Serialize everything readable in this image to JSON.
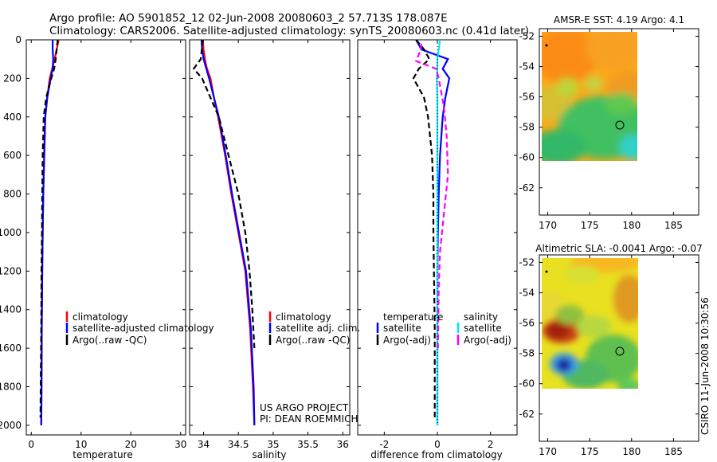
{
  "figure": {
    "title_line1": "Argo profile: AO 5901852_12 02-Jun-2008 20080603_2 57.713S 178.087E",
    "title_line2": "Climatology: CARS2006. Satellite-adjusted climatology: synTS_20080603.nc (0.41d later)",
    "credit": "CSIRO 11-Jun-2008 10:30:56",
    "project_line1": "US ARGO PROJECT",
    "project_line2": "PI: DEAN ROEMMICH"
  },
  "colors": {
    "climatology": "#ff0000",
    "satellite": "#0000ff",
    "argo": "#000000",
    "salinity_satellite": "#00e5ff",
    "salinity_argo": "#ff00ff"
  },
  "chart_data": [
    {
      "id": "temperature",
      "type": "line",
      "xlabel": "temperature",
      "ylabel": "",
      "xlim": [
        -1,
        31
      ],
      "ylim": [
        2050,
        0
      ],
      "xticks": [
        0,
        10,
        20,
        30
      ],
      "yticks": [
        0,
        200,
        400,
        600,
        800,
        1000,
        1200,
        1400,
        1600,
        1800,
        2000
      ],
      "legend": [
        "climatology",
        "satellite-adjusted climatology",
        "Argo(..raw -QC)"
      ],
      "series": [
        {
          "name": "climatology",
          "style": "solid",
          "color_key": "climatology",
          "x": [
            5.5,
            5.1,
            4.7,
            4.2,
            3.7,
            3.2,
            2.8,
            2.6,
            2.4,
            2.3,
            2.2,
            2.1,
            2.05,
            2.0
          ],
          "y": [
            0,
            50,
            100,
            150,
            200,
            300,
            400,
            600,
            800,
            1000,
            1200,
            1500,
            1800,
            2000
          ]
        },
        {
          "name": "satellite-adjusted climatology",
          "style": "solid",
          "color_key": "satellite",
          "x": [
            4.3,
            4.3,
            4.4,
            4.3,
            3.9,
            3.2,
            2.8,
            2.6,
            2.4,
            2.3,
            2.2,
            2.1,
            2.05,
            2.0
          ],
          "y": [
            0,
            50,
            100,
            150,
            200,
            300,
            400,
            600,
            800,
            1000,
            1200,
            1500,
            1800,
            2000
          ]
        },
        {
          "name": "Argo(..raw -QC)",
          "style": "dashed",
          "color_key": "argo",
          "x": [
            5.3,
            5.1,
            4.9,
            4.6,
            4.0,
            3.0,
            2.5,
            2.3,
            2.2,
            2.15,
            2.05,
            2.0,
            1.9,
            1.85
          ],
          "y": [
            0,
            50,
            100,
            150,
            200,
            300,
            400,
            600,
            800,
            1000,
            1200,
            1500,
            1800,
            1960
          ]
        }
      ]
    },
    {
      "id": "salinity",
      "type": "line",
      "xlabel": "salinity",
      "ylabel": "",
      "xlim": [
        33.8,
        36.1
      ],
      "ylim": [
        2050,
        0
      ],
      "xticks": [
        34,
        34.5,
        35,
        35.5,
        36
      ],
      "yticks": [
        0,
        200,
        400,
        600,
        800,
        1000,
        1200,
        1400,
        1600,
        1800,
        2000
      ],
      "legend": [
        "climatology",
        "satellite adj. clim.",
        "Argo(..raw -QC)"
      ],
      "series": [
        {
          "name": "climatology",
          "style": "solid",
          "color_key": "climatology",
          "x": [
            33.99,
            34.0,
            34.02,
            34.05,
            34.1,
            34.15,
            34.21,
            34.31,
            34.4,
            34.5,
            34.6,
            34.67,
            34.71,
            34.73
          ],
          "y": [
            0,
            50,
            100,
            150,
            200,
            300,
            400,
            600,
            800,
            1000,
            1200,
            1500,
            1800,
            2000
          ]
        },
        {
          "name": "satellite adj. clim.",
          "style": "solid",
          "color_key": "satellite",
          "x": [
            33.97,
            33.98,
            34.0,
            34.04,
            34.08,
            34.15,
            34.22,
            34.32,
            34.41,
            34.51,
            34.61,
            34.68,
            34.72,
            34.73
          ],
          "y": [
            0,
            50,
            100,
            150,
            200,
            300,
            400,
            600,
            800,
            1000,
            1200,
            1500,
            1800,
            2000
          ]
        },
        {
          "name": "Argo(..raw -QC)",
          "style": "dashed",
          "color_key": "argo",
          "x": [
            33.99,
            33.96,
            33.86,
            33.98,
            34.1,
            34.22,
            34.36,
            34.5,
            34.6,
            34.66,
            34.7,
            34.73
          ],
          "y": [
            0,
            100,
            150,
            200,
            300,
            400,
            600,
            800,
            1000,
            1200,
            1400,
            1600
          ]
        }
      ]
    },
    {
      "id": "difference",
      "type": "line",
      "xlabel": "difference from climatology",
      "ylabel": "",
      "xlim": [
        -3,
        3
      ],
      "ylim": [
        2050,
        0
      ],
      "xticks": [
        -2,
        0,
        2
      ],
      "yticks": [
        0,
        200,
        400,
        600,
        800,
        1000,
        1200,
        1400,
        1600,
        1800,
        2000
      ],
      "legend_titles": [
        "temperature",
        "salinity"
      ],
      "legend": [
        "satellite",
        "Argo(-adj)",
        "satellite",
        "Argo(-adj)"
      ],
      "series": [
        {
          "name": "temperature satellite",
          "style": "solid",
          "color_key": "satellite",
          "x": [
            -0.8,
            -0.6,
            0.4,
            0.2,
            0.45,
            0.3,
            0.2,
            0.1,
            0.05,
            0.02,
            0.0,
            0.0,
            0.0,
            0.0
          ],
          "y": [
            0,
            50,
            100,
            150,
            200,
            300,
            400,
            600,
            800,
            1000,
            1200,
            1500,
            1800,
            2000
          ]
        },
        {
          "name": "temperature Argo(-adj)",
          "style": "dashed",
          "color_key": "argo",
          "x": [
            -0.8,
            -0.5,
            -0.3,
            -0.7,
            -0.9,
            -0.5,
            -0.35,
            -0.2,
            -0.15,
            -0.15,
            -0.13,
            -0.1,
            -0.1,
            -0.1
          ],
          "y": [
            0,
            50,
            100,
            150,
            200,
            300,
            400,
            600,
            800,
            1000,
            1200,
            1500,
            1800,
            1960
          ]
        },
        {
          "name": "salinity satellite",
          "style": "solid",
          "color_key": "salinity_satellite",
          "x": [
            0.1,
            0.05,
            0.0,
            0.0,
            -0.02,
            0.0,
            0.0,
            0.0,
            0.0,
            0.0,
            0.0,
            0.0,
            0.0,
            0.0
          ],
          "y": [
            0,
            50,
            100,
            150,
            200,
            300,
            400,
            600,
            800,
            1000,
            1200,
            1500,
            1800,
            2000
          ]
        },
        {
          "name": "salinity Argo(-adj)",
          "style": "dashed",
          "color_key": "salinity_argo",
          "x": [
            -0.6,
            -0.65,
            -0.8,
            -0.05,
            0.05,
            0.25,
            0.35,
            0.4,
            0.25,
            0.1,
            0.05,
            0.02
          ],
          "y": [
            20,
            60,
            110,
            150,
            200,
            350,
            500,
            700,
            900,
            1100,
            1300,
            1600
          ]
        },
        {
          "name": "reference",
          "style": "dotted",
          "color_key": "argo",
          "x": [
            0,
            0
          ],
          "y": [
            0,
            2000
          ]
        }
      ]
    },
    {
      "id": "sst_map",
      "type": "heatmap",
      "title": "AMSR-E SST: 4.19 Argo: 4.1",
      "xlim": [
        169,
        188
      ],
      "ylim": [
        -63.8,
        -51.5
      ],
      "xticks": [
        170,
        175,
        180,
        185
      ],
      "yticks": [
        -52,
        -54,
        -56,
        -58,
        -60,
        -62
      ],
      "lon_range": [
        169.1,
        180
      ],
      "lat_range": [
        -60,
        -51.7
      ],
      "float_position": {
        "lon": 178.087,
        "lat": -57.713
      }
    },
    {
      "id": "sla_map",
      "type": "heatmap",
      "title": "Altimetric SLA: -0.0041 Argo: -0.07",
      "xlim": [
        169,
        188
      ],
      "ylim": [
        -63.8,
        -51.5
      ],
      "xticks": [
        170,
        175,
        180,
        185
      ],
      "yticks": [
        -52,
        -54,
        -56,
        -58,
        -60,
        -62
      ],
      "lon_range": [
        169.1,
        180.2
      ],
      "lat_range": [
        -60.2,
        -51.7
      ],
      "float_position": {
        "lon": 178.087,
        "lat": -57.713
      }
    }
  ]
}
